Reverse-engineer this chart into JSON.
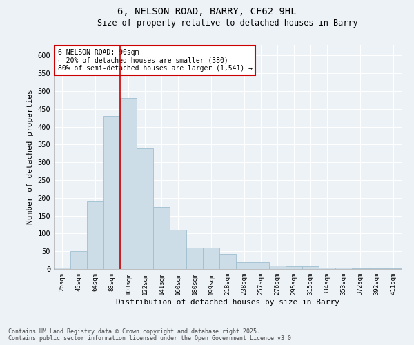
{
  "title1": "6, NELSON ROAD, BARRY, CF62 9HL",
  "title2": "Size of property relative to detached houses in Barry",
  "xlabel": "Distribution of detached houses by size in Barry",
  "ylabel": "Number of detached properties",
  "categories": [
    "26sqm",
    "45sqm",
    "64sqm",
    "83sqm",
    "103sqm",
    "122sqm",
    "141sqm",
    "160sqm",
    "180sqm",
    "199sqm",
    "218sqm",
    "238sqm",
    "257sqm",
    "276sqm",
    "295sqm",
    "315sqm",
    "334sqm",
    "353sqm",
    "372sqm",
    "392sqm",
    "411sqm"
  ],
  "values": [
    3,
    50,
    190,
    430,
    480,
    340,
    175,
    110,
    60,
    60,
    43,
    20,
    20,
    10,
    8,
    7,
    4,
    3,
    2,
    1,
    1
  ],
  "bar_color": "#ccdde8",
  "bar_edge_color": "#a0bfd0",
  "vline_color": "#cc0000",
  "vline_pos": 3.5,
  "annotation_title": "6 NELSON ROAD: 90sqm",
  "annotation_line1": "← 20% of detached houses are smaller (380)",
  "annotation_line2": "80% of semi-detached houses are larger (1,541) →",
  "annotation_box_color": "#cc0000",
  "ylim": [
    0,
    630
  ],
  "yticks": [
    0,
    50,
    100,
    150,
    200,
    250,
    300,
    350,
    400,
    450,
    500,
    550,
    600
  ],
  "footer1": "Contains HM Land Registry data © Crown copyright and database right 2025.",
  "footer2": "Contains public sector information licensed under the Open Government Licence v3.0.",
  "bg_color": "#edf2f7",
  "grid_color": "#ffffff"
}
